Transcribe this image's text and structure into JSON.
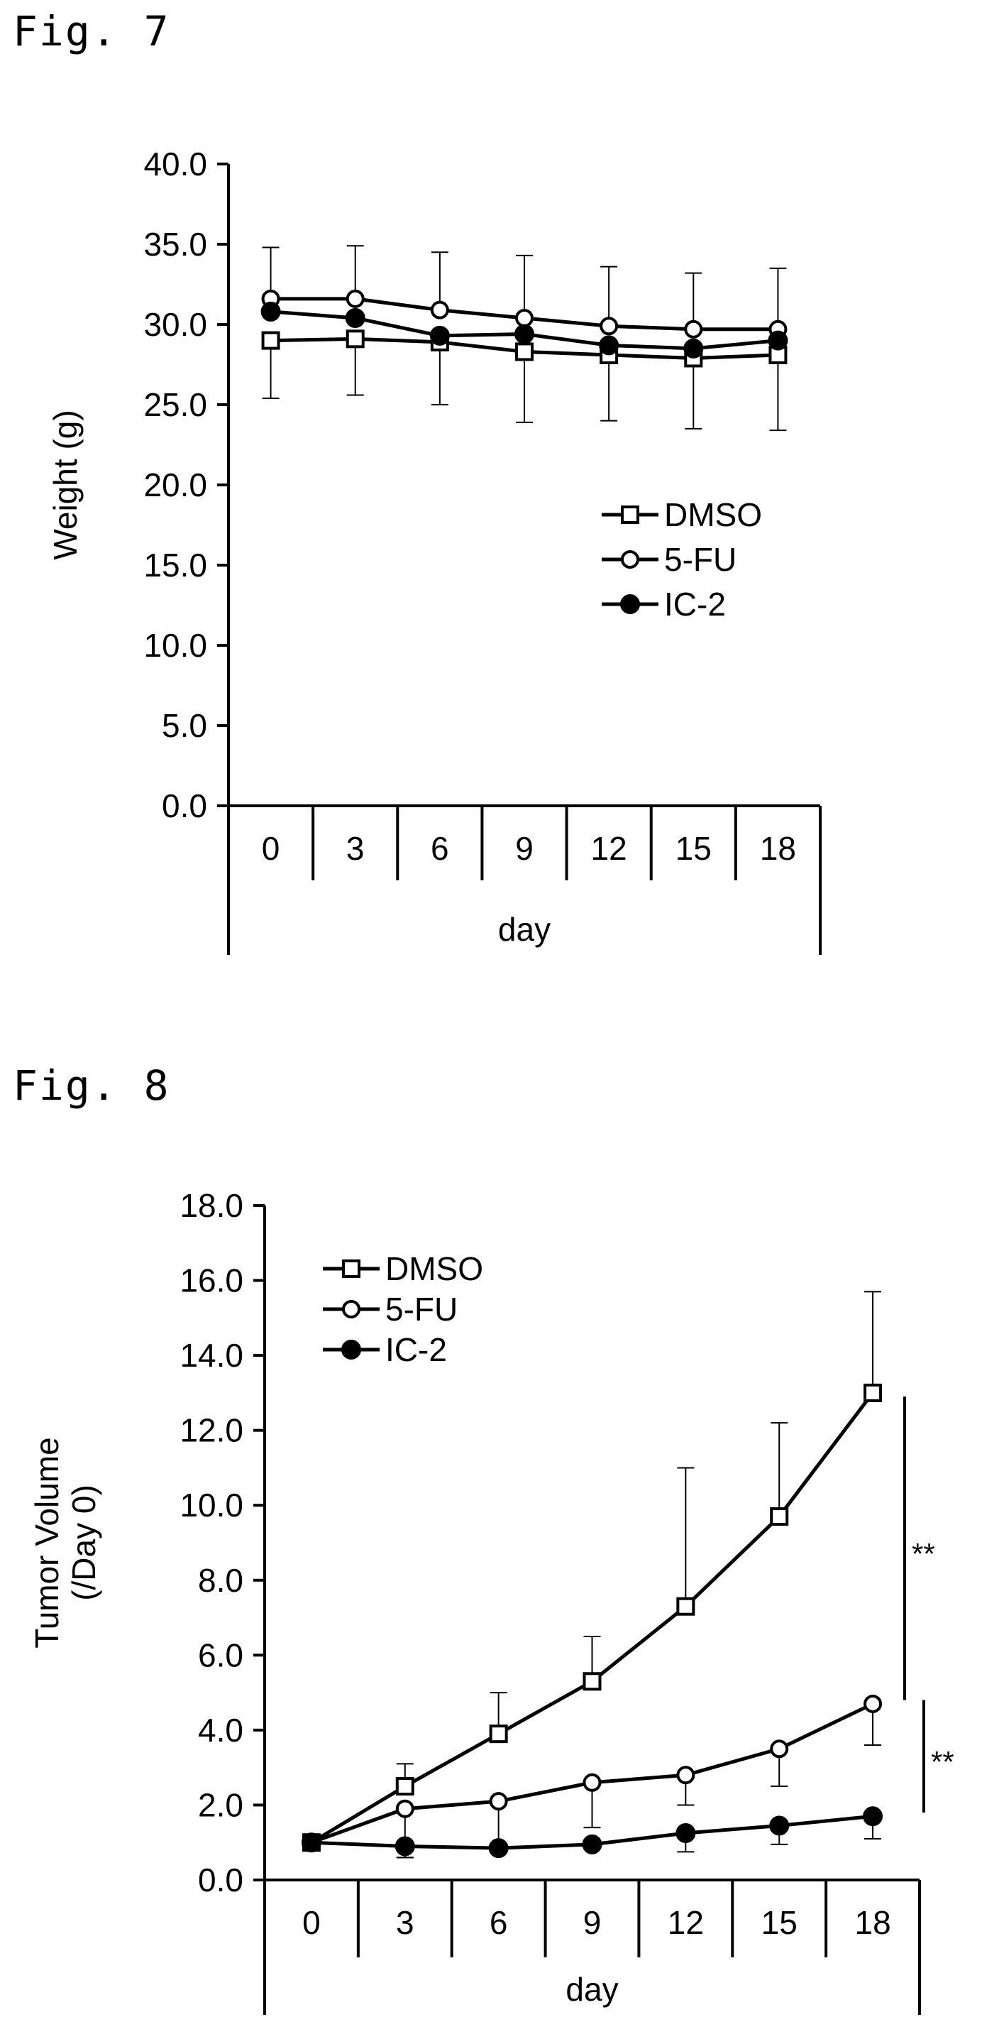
{
  "figures": [
    {
      "label": "Fig. 7",
      "chart_data": {
        "type": "line",
        "title": "",
        "xlabel": "day",
        "ylabel": "Weight (g)",
        "categories": [
          "0",
          "3",
          "6",
          "9",
          "12",
          "15",
          "18"
        ],
        "ylim": [
          0,
          40
        ],
        "yticks": [
          "0.0",
          "5.0",
          "10.0",
          "15.0",
          "20.0",
          "25.0",
          "30.0",
          "35.0",
          "40.0"
        ],
        "grid": false,
        "legend_position": "center-right",
        "series": [
          {
            "name": "DMSO",
            "marker": "open-square",
            "values": [
              29.0,
              29.1,
              28.9,
              28.3,
              28.1,
              27.9,
              28.1
            ],
            "error_minus": [
              3.6,
              3.5,
              3.9,
              4.4,
              4.1,
              4.4,
              4.7
            ],
            "error_plus": [
              0,
              0,
              0,
              0,
              0,
              0,
              0
            ]
          },
          {
            "name": "5-FU",
            "marker": "open-circle",
            "values": [
              31.6,
              31.6,
              30.9,
              30.4,
              29.9,
              29.7,
              29.7
            ],
            "error_minus": [
              0,
              0,
              0,
              0,
              0,
              0,
              0
            ],
            "error_plus": [
              3.2,
              3.3,
              3.6,
              3.9,
              3.7,
              3.5,
              3.8
            ]
          },
          {
            "name": "IC-2",
            "marker": "filled-circle",
            "values": [
              30.8,
              30.4,
              29.3,
              29.4,
              28.7,
              28.5,
              29.0
            ],
            "error_minus": [
              0,
              0,
              0,
              0,
              0,
              0,
              0
            ],
            "error_plus": [
              0,
              0,
              0,
              0,
              0,
              0,
              0
            ]
          }
        ],
        "annotations": []
      }
    },
    {
      "label": "Fig. 8",
      "chart_data": {
        "type": "line",
        "title": "",
        "xlabel": "day",
        "ylabel": "Tumor Volume\n(/Day 0)",
        "categories": [
          "0",
          "3",
          "6",
          "9",
          "12",
          "15",
          "18"
        ],
        "ylim": [
          0,
          18
        ],
        "yticks": [
          "0.0",
          "2.0",
          "4.0",
          "6.0",
          "8.0",
          "10.0",
          "12.0",
          "14.0",
          "16.0",
          "18.0"
        ],
        "grid": false,
        "legend_position": "top-left",
        "series": [
          {
            "name": "DMSO",
            "marker": "open-square",
            "values": [
              1.0,
              2.5,
              3.9,
              5.3,
              7.3,
              9.7,
              13.0
            ],
            "error_minus": [
              0,
              0,
              0,
              0,
              0,
              0,
              0
            ],
            "error_plus": [
              0,
              0.6,
              1.1,
              1.2,
              3.7,
              2.5,
              2.7
            ]
          },
          {
            "name": "5-FU",
            "marker": "open-circle",
            "values": [
              1.0,
              1.9,
              2.1,
              2.6,
              2.8,
              3.5,
              4.7
            ],
            "error_minus": [
              0,
              1.3,
              1.3,
              1.2,
              0.8,
              1.0,
              1.1
            ],
            "error_plus": [
              0,
              0,
              0,
              0,
              0,
              0,
              0
            ]
          },
          {
            "name": "IC-2",
            "marker": "filled-circle",
            "values": [
              1.0,
              0.9,
              0.85,
              0.95,
              1.25,
              1.45,
              1.7
            ],
            "error_minus": [
              0,
              0.3,
              0,
              0,
              0.5,
              0.5,
              0.6
            ],
            "error_plus": [
              0,
              0,
              0,
              0,
              0,
              0,
              0
            ]
          }
        ],
        "annotations": [
          {
            "text": "**",
            "between": [
              "DMSO",
              "5-FU"
            ],
            "span": [
              4.8,
              12.9
            ]
          },
          {
            "text": "**",
            "between": [
              "5-FU",
              "IC-2"
            ],
            "span": [
              1.8,
              4.8
            ]
          }
        ]
      }
    }
  ]
}
